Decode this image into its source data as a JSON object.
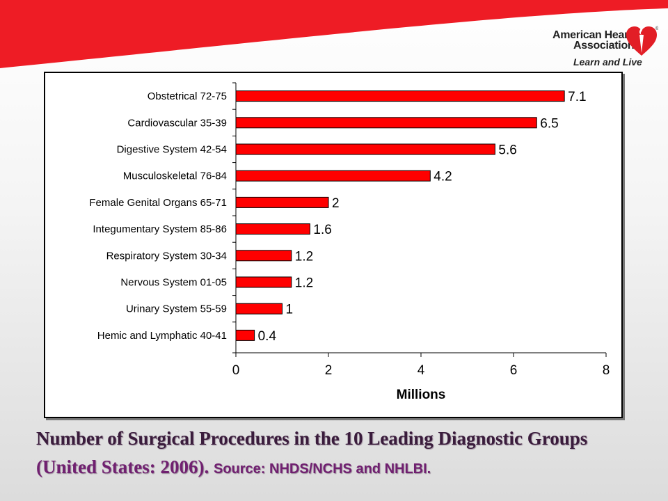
{
  "slide": {
    "logo": {
      "line1": "American Heart",
      "line2": "Association",
      "tagline": "Learn and Live",
      "registered": "®"
    },
    "caption": {
      "main": "Number of Surgical Procedures in the 10 Leading Diagnostic Groups",
      "paren": "(United States: 2006).",
      "source": "Source: NHDS/NCHS and NHLBI."
    },
    "colors": {
      "banner": "#ee1c25",
      "bar": "#ff0000",
      "caption_text": "#3a1c3c",
      "caption_accent": "#702070"
    }
  },
  "chart_data": {
    "type": "bar",
    "orientation": "horizontal",
    "categories": [
      "Obstetrical 72-75",
      "Cardiovascular 35-39",
      "Digestive System 42-54",
      "Musculoskeletal 76-84",
      "Female Genital Organs 65-71",
      "Integumentary System 85-86",
      "Respiratory System 30-34",
      "Nervous System 01-05",
      "Urinary System 55-59",
      "Hemic and Lymphatic 40-41"
    ],
    "values": [
      7.1,
      6.5,
      5.6,
      4.2,
      2,
      1.6,
      1.2,
      1.2,
      1,
      0.4
    ],
    "data_labels": [
      "7.1",
      "6.5",
      "5.6",
      "4.2",
      "2",
      "1.6",
      "1.2",
      "1.2",
      "1",
      "0.4"
    ],
    "xlabel": "Millions",
    "ylabel": "",
    "xlim": [
      0,
      8
    ],
    "xticks": [
      0,
      2,
      4,
      6,
      8
    ],
    "grid": false,
    "legend": "none"
  }
}
